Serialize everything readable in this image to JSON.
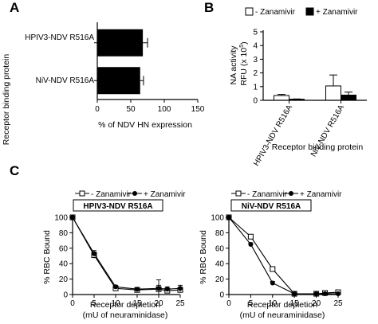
{
  "chart_data": [
    {
      "panel": "A",
      "type": "bar",
      "orientation": "horizontal",
      "categories": [
        "HPIV3-NDV R516A",
        "NiV-NDV R516A"
      ],
      "values": [
        68,
        64
      ],
      "errors": [
        7,
        5
      ],
      "xlabel": "% of NDV HN expression",
      "ylabel": "Receptor binding protein",
      "xlim": [
        0,
        150
      ],
      "xticks": [
        "0",
        "50",
        "100",
        "150"
      ]
    },
    {
      "panel": "B",
      "type": "bar",
      "categories": [
        "HPIV3-NDV R516A",
        "NiV-NDV R516A"
      ],
      "series": [
        {
          "name": "- Zanamivir",
          "values": [
            0.35,
            1.05
          ],
          "errors": [
            0.08,
            0.8
          ]
        },
        {
          "name": "+ Zanamivir",
          "values": [
            0.08,
            0.38
          ],
          "errors": [
            0.02,
            0.22
          ]
        }
      ],
      "ylabel": "NA activity\nRFU (x 10^5)",
      "ylabel_line1": "NA activity",
      "ylabel_line2": "RFU (x 10",
      "ylabel_sup": "5",
      "ylabel_close": ")",
      "xlabel": "Receptor binding protein",
      "ylim": [
        0,
        5
      ],
      "yticks": [
        "0",
        "1",
        "2",
        "3",
        "4",
        "5"
      ]
    },
    {
      "panel": "C",
      "type": "line",
      "title": "HPIV3-NDV R516A",
      "x": [
        0,
        5,
        10,
        15,
        20,
        22,
        25
      ],
      "series": [
        {
          "name": "- Zanamivir",
          "values": [
            100,
            51,
            8,
            6,
            7,
            5,
            6
          ],
          "errors": [
            0,
            4,
            2,
            2,
            12,
            3,
            3
          ]
        },
        {
          "name": "+ Zanamivir",
          "values": [
            100,
            53,
            10,
            7,
            8,
            7,
            8
          ],
          "errors": [
            0,
            4,
            2,
            2,
            4,
            3,
            4
          ]
        }
      ],
      "xlabel": "Receptor depletion",
      "xlabel2": "(mU of neuraminidase)",
      "ylabel": "% RBC Bound",
      "xlim": [
        0,
        25
      ],
      "ylim": [
        0,
        100
      ],
      "xticks": [
        "0",
        "5",
        "10",
        "15",
        "20",
        "25"
      ],
      "yticks": [
        "0",
        "20",
        "40",
        "60",
        "80",
        "100"
      ]
    },
    {
      "panel": "C",
      "type": "line",
      "title": "NiV-NDV R516A",
      "x": [
        0,
        5,
        10,
        15,
        20,
        22,
        25
      ],
      "series": [
        {
          "name": "- Zanamivir",
          "values": [
            100,
            75,
            33,
            1,
            1,
            2,
            3
          ],
          "errors": [
            0,
            2,
            2,
            1,
            1,
            1,
            1
          ]
        },
        {
          "name": "+ Zanamivir",
          "values": [
            100,
            65,
            15,
            1,
            1,
            1,
            1
          ],
          "errors": [
            0,
            2,
            2,
            1,
            1,
            1,
            1
          ]
        }
      ],
      "xlabel": "Receptor depletion",
      "xlabel2": "(mU of neuraminidase)",
      "ylabel": "% RBC Bound",
      "xlim": [
        0,
        25
      ],
      "ylim": [
        0,
        100
      ],
      "xticks": [
        "0",
        "5",
        "10",
        "15",
        "20",
        "25"
      ],
      "yticks": [
        "0",
        "20",
        "40",
        "60",
        "80",
        "100"
      ]
    }
  ],
  "labels": {
    "A": "A",
    "B": "B",
    "C": "C"
  }
}
